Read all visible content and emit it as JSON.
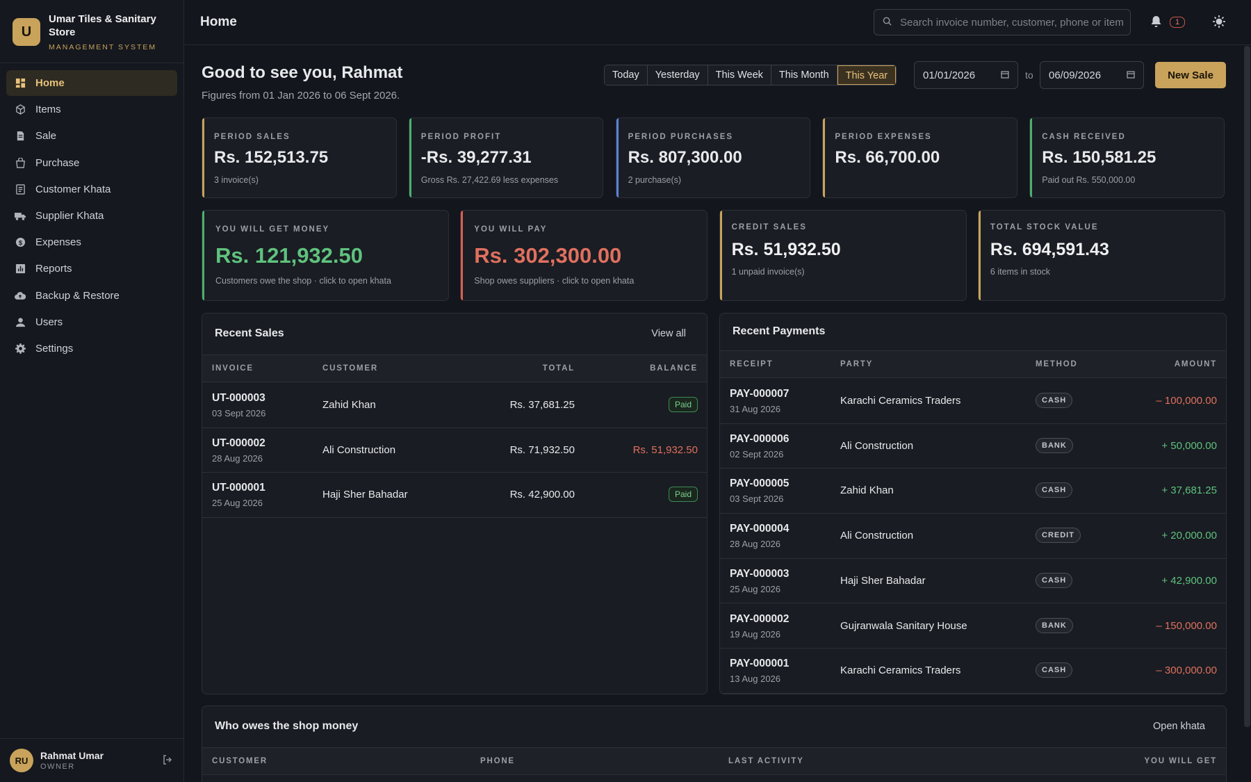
{
  "brand": {
    "initial": "U",
    "name": "Umar Tiles & Sanitary Store",
    "subtitle": "MANAGEMENT SYSTEM"
  },
  "nav": [
    {
      "label": "Home",
      "icon": "grid-icon",
      "active": true
    },
    {
      "label": "Items",
      "icon": "cube-icon"
    },
    {
      "label": "Sale",
      "icon": "document-icon"
    },
    {
      "label": "Purchase",
      "icon": "bag-icon"
    },
    {
      "label": "Customer Khata",
      "icon": "ledger-icon"
    },
    {
      "label": "Supplier Khata",
      "icon": "truck-icon"
    },
    {
      "label": "Expenses",
      "icon": "coin-icon"
    },
    {
      "label": "Reports",
      "icon": "chart-icon"
    },
    {
      "label": "Backup & Restore",
      "icon": "cloud-icon"
    },
    {
      "label": "Users",
      "icon": "user-icon"
    },
    {
      "label": "Settings",
      "icon": "gear-icon"
    }
  ],
  "user": {
    "initials": "RU",
    "name": "Rahmat Umar",
    "role": "OWNER"
  },
  "header": {
    "title": "Home",
    "search_placeholder": "Search invoice number, customer, phone or item",
    "notifications": "1"
  },
  "greeting": {
    "title": "Good to see you, Rahmat",
    "subtitle": "Figures from 01 Jan 2026 to 06 Sept 2026."
  },
  "range_buttons": [
    "Today",
    "Yesterday",
    "This Week",
    "This Month",
    "This Year"
  ],
  "range_selected": "This Year",
  "date_from": "01/01/2026",
  "date_to": "06/09/2026",
  "to_label": "to",
  "new_sale": "New Sale",
  "stats": [
    {
      "label": "PERIOD SALES",
      "value": "Rs. 152,513.75",
      "sub": "3 invoice(s)",
      "color": "#c9a35c"
    },
    {
      "label": "PERIOD PROFIT",
      "value": "-Rs. 39,277.31",
      "sub": "Gross Rs. 27,422.69 less expenses",
      "color": "#4caf6e"
    },
    {
      "label": "PERIOD PURCHASES",
      "value": "Rs. 807,300.00",
      "sub": "2 purchase(s)",
      "color": "#5b82d6"
    },
    {
      "label": "PERIOD EXPENSES",
      "value": "Rs. 66,700.00",
      "sub": "",
      "color": "#c9a35c"
    },
    {
      "label": "CASH RECEIVED",
      "value": "Rs. 150,581.25",
      "sub": "Paid out Rs. 550,000.00",
      "color": "#4caf6e"
    }
  ],
  "big_stats": [
    {
      "label": "YOU WILL GET MONEY",
      "value": "Rs. 121,932.50",
      "sub": "Customers owe the shop · click to open khata",
      "color": "#4caf6e",
      "valcolor": "#5fc27e"
    },
    {
      "label": "YOU WILL PAY",
      "value": "Rs. 302,300.00",
      "sub": "Shop owes suppliers · click to open khata",
      "color": "#d9604f",
      "valcolor": "#e0705f"
    },
    {
      "label": "CREDIT SALES",
      "value": "Rs. 51,932.50",
      "sub": "1 unpaid invoice(s)",
      "color": "#c9a35c",
      "valcolor": "#f0f0f2"
    },
    {
      "label": "TOTAL STOCK VALUE",
      "value": "Rs. 694,591.43",
      "sub": "6 items in stock",
      "color": "#c9a35c",
      "valcolor": "#f0f0f2"
    }
  ],
  "recent_sales": {
    "title": "Recent Sales",
    "link": "View all",
    "headers": [
      "INVOICE",
      "CUSTOMER",
      "TOTAL",
      "BALANCE"
    ],
    "rows": [
      {
        "invoice": "UT-000003",
        "date": "03 Sept 2026",
        "customer": "Zahid Khan",
        "total": "Rs. 37,681.25",
        "balance": "Paid",
        "paid": true
      },
      {
        "invoice": "UT-000002",
        "date": "28 Aug 2026",
        "customer": "Ali Construction",
        "total": "Rs. 71,932.50",
        "balance": "Rs. 51,932.50",
        "paid": false
      },
      {
        "invoice": "UT-000001",
        "date": "25 Aug 2026",
        "customer": "Haji Sher Bahadar",
        "total": "Rs. 42,900.00",
        "balance": "Paid",
        "paid": true
      }
    ]
  },
  "recent_payments": {
    "title": "Recent Payments",
    "headers": [
      "RECEIPT",
      "PARTY",
      "METHOD",
      "AMOUNT"
    ],
    "rows": [
      {
        "receipt": "PAY-000007",
        "date": "31 Aug 2026",
        "party": "Karachi Ceramics Traders",
        "method": "CASH",
        "amount": "– 100,000.00",
        "out": true
      },
      {
        "receipt": "PAY-000006",
        "date": "02 Sept 2026",
        "party": "Ali Construction",
        "method": "BANK",
        "amount": "+ 50,000.00",
        "out": false
      },
      {
        "receipt": "PAY-000005",
        "date": "03 Sept 2026",
        "party": "Zahid Khan",
        "method": "CASH",
        "amount": "+ 37,681.25",
        "out": false
      },
      {
        "receipt": "PAY-000004",
        "date": "28 Aug 2026",
        "party": "Ali Construction",
        "method": "CREDIT",
        "amount": "+ 20,000.00",
        "out": false
      },
      {
        "receipt": "PAY-000003",
        "date": "25 Aug 2026",
        "party": "Haji Sher Bahadar",
        "method": "CASH",
        "amount": "+ 42,900.00",
        "out": false
      },
      {
        "receipt": "PAY-000002",
        "date": "19 Aug 2026",
        "party": "Gujranwala Sanitary House",
        "method": "BANK",
        "amount": "– 150,000.00",
        "out": true
      },
      {
        "receipt": "PAY-000001",
        "date": "13 Aug 2026",
        "party": "Karachi Ceramics Traders",
        "method": "CASH",
        "amount": "– 300,000.00",
        "out": true
      }
    ]
  },
  "owes": {
    "title": "Who owes the shop money",
    "link": "Open khata",
    "headers": [
      "CUSTOMER",
      "PHONE",
      "LAST ACTIVITY",
      "YOU WILL GET"
    ]
  },
  "colors": {
    "accent": "#c9a35c",
    "positive": "#5fc27e",
    "negative": "#e0705f"
  }
}
